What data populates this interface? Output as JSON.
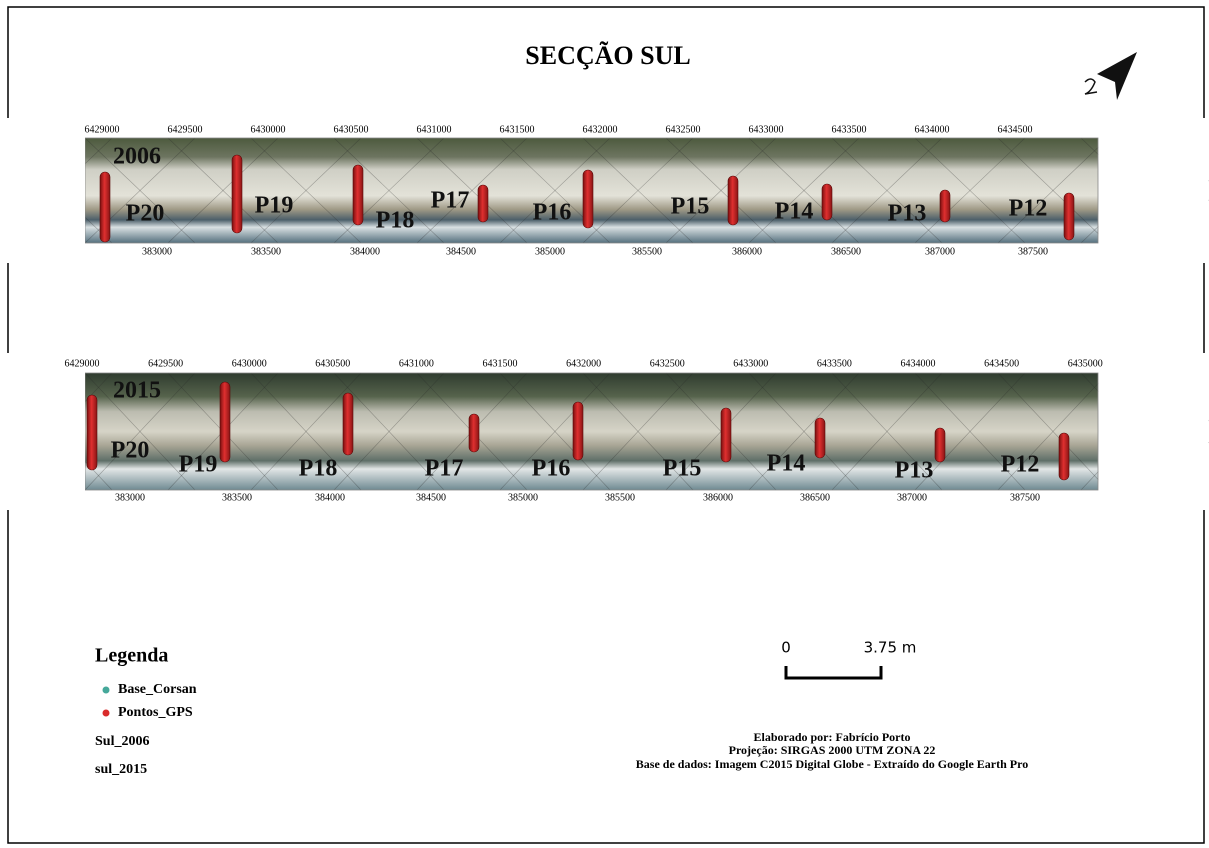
{
  "title": "SECÇÃO SUL",
  "panels": [
    {
      "year": "2006",
      "top_coordinates": [
        6429000,
        6429500,
        6430000,
        6430500,
        6431000,
        6431500,
        6432000,
        6432500,
        6433000,
        6433500,
        6434000,
        6434500
      ],
      "bottom_coordinates": [
        383000,
        383500,
        384000,
        384500,
        385000,
        385500,
        386000,
        386500,
        387000,
        387500
      ],
      "points": [
        "P20",
        "P19",
        "P18",
        "P17",
        "P16",
        "P15",
        "P14",
        "P13",
        "P12"
      ]
    },
    {
      "year": "2015",
      "top_coordinates": [
        6429000,
        6429500,
        6430000,
        6430500,
        6431000,
        6431500,
        6432000,
        6432500,
        6433000,
        6433500,
        6434000,
        6434500,
        6435000
      ],
      "bottom_coordinates": [
        383000,
        383500,
        384000,
        384500,
        385000,
        385500,
        386000,
        386500,
        387000,
        387500
      ],
      "points": [
        "P20",
        "P19",
        "P18",
        "P17",
        "P16",
        "P15",
        "P14",
        "P13",
        "P12"
      ]
    }
  ],
  "legend": {
    "title": "Legenda",
    "items": [
      "Base_Corsan",
      "Pontos_GPS",
      "Sul_2006",
      "sul_2015"
    ]
  },
  "scale_bar": {
    "start": "0",
    "end": "3.75 m"
  },
  "credits": [
    "Elaborado por: Fabrício Porto",
    "Projeção: SIRGAS 2000 UTM ZONA 22",
    "Base de dados: Imagem C2015 Digital Globe - Extraído do Google Earth Pro"
  ]
}
